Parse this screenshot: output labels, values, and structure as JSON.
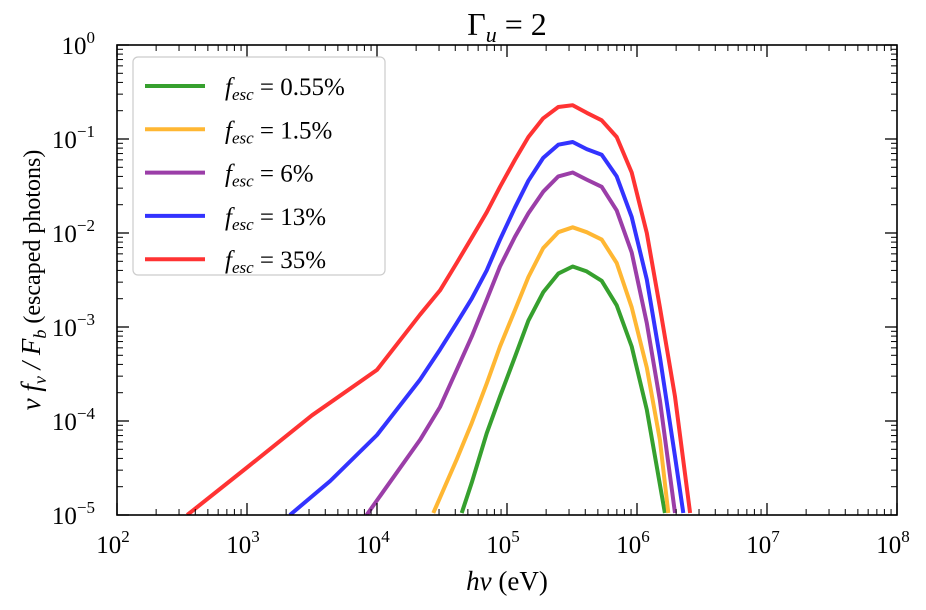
{
  "chart_data": {
    "type": "line",
    "title": "Γ_u = 2",
    "title_parts": {
      "sym": "Γ",
      "sub": "u",
      "rest": " = 2"
    },
    "xlabel": "hν (eV)",
    "xlabel_parts": {
      "italic": "hν",
      "rest": " (eV)"
    },
    "ylabel": "ν f_ν / F_b   (escaped photons)",
    "ylabel_parts": {
      "italic": "ν f",
      "sub1": "ν",
      "mid": " / F",
      "sub2": "b",
      "rest": "   (escaped photons)"
    },
    "xscale": "log",
    "yscale": "log",
    "xlim": [
      100,
      100000000
    ],
    "ylim": [
      1e-05,
      1
    ],
    "xticks": [
      {
        "exp": "2"
      },
      {
        "exp": "3"
      },
      {
        "exp": "4"
      },
      {
        "exp": "5"
      },
      {
        "exp": "6"
      },
      {
        "exp": "7"
      },
      {
        "exp": "8"
      }
    ],
    "yticks": [
      {
        "exp": "−5"
      },
      {
        "exp": "−4"
      },
      {
        "exp": "−3"
      },
      {
        "exp": "−2"
      },
      {
        "exp": "−1"
      },
      {
        "exp": "0"
      }
    ],
    "tick_base": "10",
    "grid": false,
    "legend_placement": "top-left",
    "series": [
      {
        "name": "f_esc = 0.55%",
        "value_label": " = 0.55%",
        "color": "#36a02e",
        "x": [
          44800,
          53500,
          69800,
          88400,
          115000,
          146000,
          190000,
          248000,
          320000,
          410000,
          535000,
          698000,
          910000,
          1190000,
          1640000
        ],
        "y": [
          1.05e-05,
          2.2e-05,
          7.4e-05,
          0.000182,
          0.00048,
          0.00117,
          0.00234,
          0.0037,
          0.0044,
          0.0039,
          0.0031,
          0.0017,
          0.00062,
          0.000132,
          1.05e-05
        ]
      },
      {
        "name": "f_esc = 1.5%",
        "value_label": " = 1.5%",
        "color": "#ffb733",
        "x": [
          27100,
          41000,
          53500,
          69800,
          88400,
          115000,
          146000,
          190000,
          248000,
          320000,
          410000,
          535000,
          698000,
          910000,
          1190000,
          1500000,
          1740000
        ],
        "y": [
          1.05e-05,
          3.9e-05,
          9.5e-05,
          0.00025,
          0.00062,
          0.00151,
          0.0034,
          0.0069,
          0.0102,
          0.0115,
          0.0102,
          0.0085,
          0.0048,
          0.00162,
          0.00037,
          6.3e-05,
          1.05e-05
        ]
      },
      {
        "name": "f_esc = 6%",
        "value_label": " = 6%",
        "color": "#9b3ea8",
        "x": [
          8318,
          21400,
          30500,
          41000,
          53500,
          69800,
          88400,
          115000,
          146000,
          190000,
          248000,
          320000,
          410000,
          535000,
          698000,
          910000,
          1190000,
          1500000,
          1960000
        ],
        "y": [
          1e-05,
          6.3e-05,
          0.000141,
          0.00035,
          0.00079,
          0.00195,
          0.0044,
          0.0091,
          0.0162,
          0.0275,
          0.04,
          0.044,
          0.037,
          0.031,
          0.0174,
          0.0062,
          0.0011,
          0.000166,
          1.05e-05
        ]
      },
      {
        "name": "f_esc = 13%",
        "value_label": " = 13%",
        "color": "#3333ff",
        "x": [
          2138,
          4365,
          10000,
          21400,
          30500,
          41000,
          53500,
          69800,
          88400,
          115000,
          146000,
          190000,
          248000,
          320000,
          410000,
          535000,
          698000,
          910000,
          1190000,
          1500000,
          1960000,
          2270000
        ],
        "y": [
          1e-05,
          2.3e-05,
          7.1e-05,
          0.000275,
          0.000575,
          0.0011,
          0.002,
          0.004,
          0.0085,
          0.0186,
          0.036,
          0.063,
          0.087,
          0.093,
          0.078,
          0.068,
          0.04,
          0.0148,
          0.0032,
          0.00048,
          4.2e-05,
          1.05e-05
        ]
      },
      {
        "name": "f_esc = 35%",
        "value_label": " = 35%",
        "color": "#ff3333",
        "x": [
          347,
          1000,
          3162,
          10000,
          21400,
          30500,
          41000,
          53500,
          69800,
          88400,
          115000,
          146000,
          190000,
          248000,
          320000,
          410000,
          535000,
          698000,
          910000,
          1190000,
          1500000,
          1960000,
          2560000
        ],
        "y": [
          1e-05,
          3.2e-05,
          0.000115,
          0.00035,
          0.00135,
          0.00245,
          0.0048,
          0.0089,
          0.0166,
          0.031,
          0.06,
          0.105,
          0.166,
          0.219,
          0.229,
          0.19,
          0.158,
          0.105,
          0.044,
          0.01,
          0.00162,
          0.000182,
          1.05e-05
        ]
      }
    ]
  }
}
